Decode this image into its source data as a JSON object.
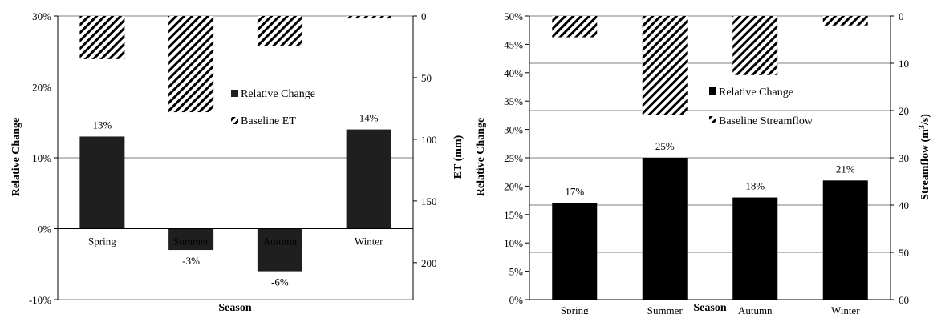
{
  "chart_data": [
    {
      "type": "bar",
      "categories": [
        "Spring",
        "Summer",
        "Autumn",
        "Winter"
      ],
      "xlabel": "Season",
      "ylabel": "Relative Change",
      "y2label": "ET (mm)",
      "ylim": [
        -10,
        30
      ],
      "y_ticks": [
        "-10%",
        "0%",
        "10%",
        "20%",
        "30%"
      ],
      "y2lim": [
        0,
        230
      ],
      "y2_reversed": true,
      "y2_ticks": [
        "0",
        "50",
        "100",
        "150",
        "200"
      ],
      "grid": true,
      "legend_position": "center",
      "series": [
        {
          "name": "Relative Change",
          "axis": "left",
          "style": "solid",
          "color": "#1f1f1f",
          "values": [
            13,
            -3,
            -6,
            14
          ],
          "labels": [
            "13%",
            "-3%",
            "-6%",
            "14%"
          ]
        },
        {
          "name": "Baseline ET",
          "axis": "right",
          "style": "hatched",
          "color": "#000000",
          "values": [
            35,
            78,
            24,
            2
          ]
        }
      ]
    },
    {
      "type": "bar",
      "categories": [
        "Spring",
        "Summer",
        "Autumn",
        "Winter"
      ],
      "xlabel": "Season",
      "ylabel": "Relative Change",
      "y2label_main": "Streamflow (m",
      "y2label_sup": "3",
      "y2label_end": "/s)",
      "ylim": [
        0,
        50
      ],
      "y_ticks": [
        "0%",
        "5%",
        "10%",
        "15%",
        "20%",
        "25%",
        "30%",
        "35%",
        "40%",
        "45%",
        "50%"
      ],
      "y2lim": [
        0,
        60
      ],
      "y2_reversed": true,
      "y2_ticks": [
        "0",
        "10",
        "20",
        "30",
        "40",
        "50",
        "60"
      ],
      "grid": true,
      "legend_position": "center",
      "series": [
        {
          "name": "Relative Change",
          "axis": "left",
          "style": "solid",
          "color": "#000000",
          "values": [
            17,
            25,
            18,
            21
          ],
          "labels": [
            "17%",
            "25%",
            "18%",
            "21%"
          ]
        },
        {
          "name": "Baseline Streamflow",
          "axis": "right",
          "style": "hatched",
          "color": "#000000",
          "values": [
            4.5,
            21,
            12.5,
            2
          ]
        }
      ]
    }
  ]
}
